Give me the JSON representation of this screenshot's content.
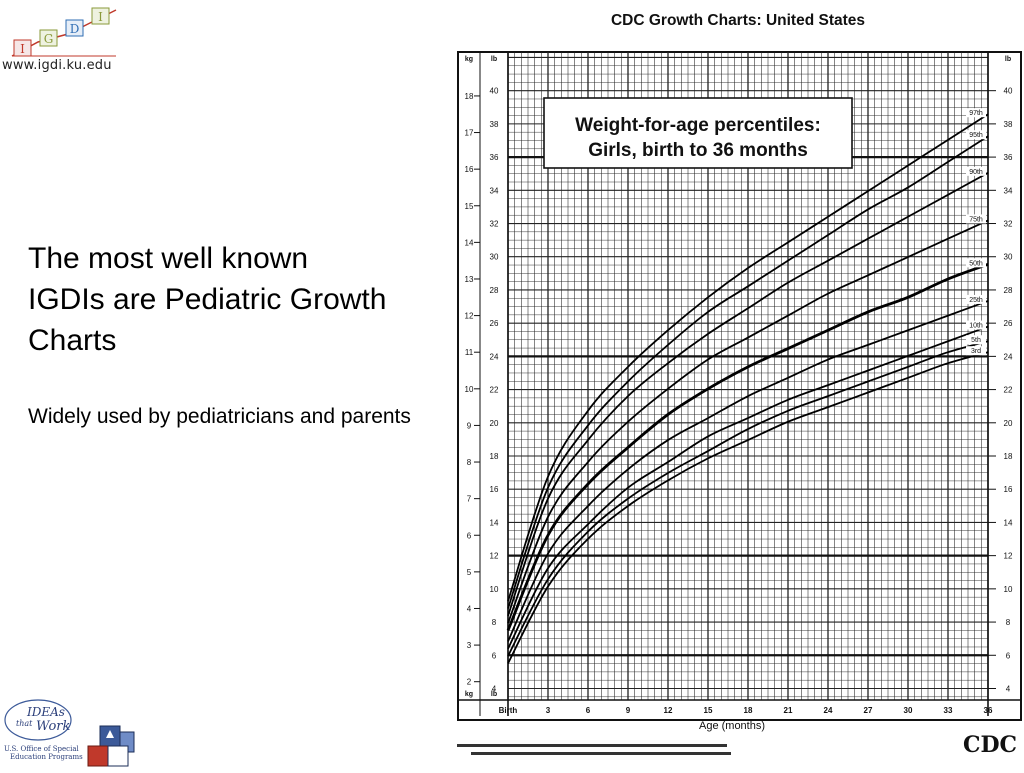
{
  "site": {
    "url": "www.igdi.ku.edu",
    "logo_letters": [
      "I",
      "G",
      "D",
      "I"
    ]
  },
  "slide": {
    "heading": "The most well known IGDIs are Pediatric Growth Charts",
    "subtext": "Widely used by pediatricians and parents"
  },
  "ideas_logo": {
    "line1": "IDEAs",
    "line2": "that",
    "line3": "Work",
    "caption1": "U.S. Office of Special",
    "caption2": "Education Programs"
  },
  "chart_data": {
    "type": "line",
    "header": "CDC Growth Charts: United States",
    "title_line1": "Weight-for-age percentiles:",
    "title_line2": "Girls, birth to 36 months",
    "xlabel": "Age (months)",
    "x_ticks": [
      "Birth",
      "3",
      "6",
      "9",
      "12",
      "15",
      "18",
      "21",
      "24",
      "27",
      "30",
      "33",
      "36"
    ],
    "x_values": [
      0,
      3,
      6,
      9,
      12,
      15,
      18,
      21,
      24,
      27,
      30,
      33,
      36
    ],
    "xlim": [
      0,
      36
    ],
    "left_unit_top": "kg",
    "left_unit_top2": "lb",
    "left_unit_bottom": "kg",
    "left_unit_bottom2": "lb",
    "right_unit": "lb",
    "kg_ticks": [
      "2",
      "3",
      "4",
      "5",
      "6",
      "7",
      "8",
      "9",
      "10",
      "11",
      "12",
      "13",
      "14",
      "15",
      "16",
      "17",
      "18"
    ],
    "lb_ticks": [
      "4",
      "6",
      "8",
      "10",
      "12",
      "14",
      "16",
      "18",
      "20",
      "22",
      "24",
      "26",
      "28",
      "30",
      "32",
      "34",
      "36",
      "38",
      "40"
    ],
    "ylim_kg": [
      1.5,
      19.2
    ],
    "logo": "CDC",
    "series": [
      {
        "name": "97th",
        "values": [
          4.2,
          7.6,
          9.4,
          10.6,
          11.6,
          12.5,
          13.3,
          14.0,
          14.7,
          15.4,
          16.1,
          16.8,
          17.5
        ],
        "bold": false
      },
      {
        "name": "95th",
        "values": [
          4.0,
          7.3,
          9.0,
          10.2,
          11.2,
          12.1,
          12.8,
          13.5,
          14.2,
          14.9,
          15.5,
          16.2,
          16.9
        ],
        "bold": false
      },
      {
        "name": "90th",
        "values": [
          3.8,
          7.0,
          8.6,
          9.8,
          10.7,
          11.5,
          12.2,
          12.9,
          13.5,
          14.1,
          14.7,
          15.3,
          15.9
        ],
        "bold": false
      },
      {
        "name": "75th",
        "values": [
          3.6,
          6.5,
          8.0,
          9.1,
          10.0,
          10.8,
          11.4,
          12.0,
          12.6,
          13.1,
          13.6,
          14.1,
          14.6
        ],
        "bold": false
      },
      {
        "name": "50th",
        "values": [
          3.4,
          6.0,
          7.4,
          8.4,
          9.3,
          10.0,
          10.6,
          11.1,
          11.6,
          12.1,
          12.5,
          13.0,
          13.4
        ],
        "bold": true
      },
      {
        "name": "25th",
        "values": [
          3.1,
          5.5,
          6.8,
          7.8,
          8.6,
          9.2,
          9.8,
          10.3,
          10.8,
          11.2,
          11.6,
          12.0,
          12.4
        ],
        "bold": false
      },
      {
        "name": "10th",
        "values": [
          2.9,
          5.1,
          6.3,
          7.3,
          8.0,
          8.7,
          9.2,
          9.7,
          10.1,
          10.5,
          10.9,
          11.3,
          11.7
        ],
        "bold": false
      },
      {
        "name": "5th",
        "values": [
          2.7,
          4.8,
          6.1,
          7.0,
          7.7,
          8.3,
          8.9,
          9.4,
          9.8,
          10.2,
          10.6,
          11.0,
          11.3
        ],
        "bold": false
      },
      {
        "name": "3rd",
        "values": [
          2.5,
          4.6,
          5.9,
          6.8,
          7.5,
          8.1,
          8.6,
          9.1,
          9.5,
          9.9,
          10.3,
          10.7,
          11.0
        ],
        "bold": false
      }
    ]
  }
}
